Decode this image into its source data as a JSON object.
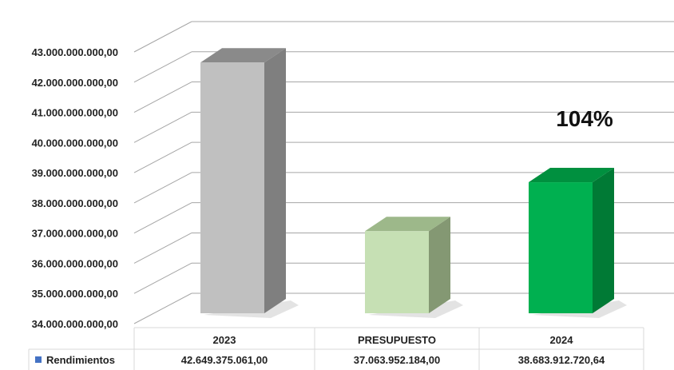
{
  "chart_data": {
    "type": "bar",
    "style": "3d-column",
    "categories": [
      "2023",
      "PRESUPUESTO",
      "2024"
    ],
    "series": [
      {
        "name": "Rendimientos",
        "values": [
          42649375061.0,
          37063952184.0,
          38683912720.64
        ],
        "value_labels": [
          "42.649.375.061,00",
          "37.063.952.184,00",
          "38.683.912.720,64"
        ]
      }
    ],
    "ylim": [
      34000000000,
      43000000000
    ],
    "yticks": [
      34000000000,
      35000000000,
      36000000000,
      37000000000,
      38000000000,
      39000000000,
      40000000000,
      41000000000,
      42000000000,
      43000000000
    ],
    "ytick_labels": [
      "34.000.000.000,00",
      "35.000.000.000,00",
      "36.000.000.000,00",
      "37.000.000.000,00",
      "38.000.000.000,00",
      "39.000.000.000,00",
      "40.000.000.000,00",
      "41.000.000.000,00",
      "42.000.000.000,00",
      "43.000.000.000,00"
    ],
    "grid": true,
    "data_table": true,
    "annotation": "104%",
    "colors": {
      "bars": [
        "#c0c0c0",
        "#c6e0b4",
        "#00b050"
      ],
      "sides": [
        "#7f7f7f",
        "#849873",
        "#007a35"
      ],
      "tops": [
        "#8a8a8a",
        "#9db88a",
        "#00903f"
      ],
      "legend_key": "#4472c4",
      "grid": "#a6a6a6"
    }
  }
}
